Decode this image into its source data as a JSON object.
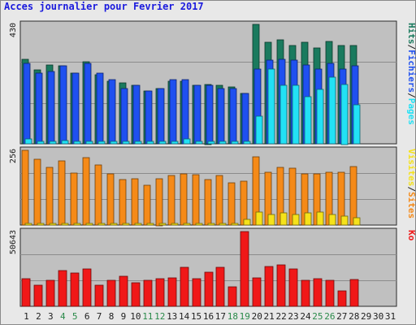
{
  "title": "Acces journalier pour Fevrier 2017",
  "chart_data": [
    {
      "type": "bar",
      "panel": "top",
      "ymax_label": "430",
      "ylim": [
        0,
        430
      ],
      "x": [
        "1",
        "2",
        "3",
        "4",
        "5",
        "6",
        "7",
        "8",
        "9",
        "10",
        "11",
        "12",
        "13",
        "14",
        "15",
        "16",
        "17",
        "18",
        "19",
        "20",
        "21",
        "22",
        "23",
        "24",
        "25",
        "26",
        "27",
        "28",
        "29",
        "30",
        "31"
      ],
      "series": [
        {
          "name": "Hits",
          "color": "#1a7a5e",
          "values": [
            305,
            265,
            285,
            280,
            255,
            295,
            250,
            225,
            220,
            210,
            190,
            200,
            225,
            225,
            210,
            215,
            210,
            205,
            180,
            430,
            365,
            375,
            355,
            365,
            345,
            370,
            355,
            355,
            0,
            0,
            0
          ]
        },
        {
          "name": "Fichiers",
          "color": "#1f50f0",
          "values": [
            290,
            255,
            260,
            280,
            255,
            290,
            255,
            230,
            200,
            210,
            190,
            200,
            230,
            230,
            210,
            210,
            200,
            200,
            180,
            270,
            300,
            305,
            300,
            285,
            270,
            290,
            270,
            280,
            0,
            0,
            0
          ]
        },
        {
          "name": "Pages",
          "color": "#22e1f5",
          "values": [
            18,
            10,
            10,
            12,
            10,
            10,
            10,
            8,
            8,
            8,
            8,
            8,
            10,
            18,
            10,
            8,
            10,
            8,
            8,
            100,
            270,
            210,
            210,
            170,
            195,
            240,
            215,
            140,
            0,
            0,
            0
          ]
        }
      ],
      "legend_labels": [
        "Pages",
        "/",
        "Fichiers",
        "/",
        "Hits"
      ],
      "legend_colors": [
        "#22e1f5",
        "#202020",
        "#1f50f0",
        "#202020",
        "#1a7a5e"
      ]
    },
    {
      "type": "bar",
      "panel": "middle",
      "ymax_label": "256",
      "ylim": [
        0,
        256
      ],
      "x": [
        "1",
        "2",
        "3",
        "4",
        "5",
        "6",
        "7",
        "8",
        "9",
        "10",
        "11",
        "12",
        "13",
        "14",
        "15",
        "16",
        "17",
        "18",
        "19",
        "20",
        "21",
        "22",
        "23",
        "24",
        "25",
        "26",
        "27",
        "28",
        "29",
        "30",
        "31"
      ],
      "series": [
        {
          "name": "Sites",
          "color": "#f58a18",
          "values": [
            256,
            225,
            198,
            220,
            178,
            230,
            205,
            175,
            155,
            158,
            135,
            160,
            170,
            175,
            172,
            155,
            170,
            145,
            150,
            235,
            180,
            198,
            195,
            175,
            175,
            182,
            180,
            200,
            0,
            0,
            0
          ]
        },
        {
          "name": "Visites",
          "color": "#f5e21a",
          "values": [
            5,
            3,
            3,
            4,
            3,
            3,
            3,
            3,
            3,
            3,
            3,
            3,
            3,
            3,
            3,
            3,
            3,
            3,
            20,
            45,
            35,
            42,
            35,
            42,
            45,
            35,
            30,
            25,
            0,
            0,
            0
          ]
        }
      ],
      "legend_labels": [
        "Sites",
        "/",
        "Visites"
      ],
      "legend_colors": [
        "#f58a18",
        "#202020",
        "#f5e21a"
      ]
    },
    {
      "type": "bar",
      "panel": "bottom",
      "ymax_label": "50643",
      "ylim": [
        0,
        50643
      ],
      "x": [
        "1",
        "2",
        "3",
        "4",
        "5",
        "6",
        "7",
        "8",
        "9",
        "10",
        "11",
        "12",
        "13",
        "14",
        "15",
        "16",
        "17",
        "18",
        "19",
        "20",
        "21",
        "22",
        "23",
        "24",
        "25",
        "26",
        "27",
        "28",
        "29",
        "30",
        "31"
      ],
      "series": [
        {
          "name": "Ko",
          "color": "#f01818",
          "values": [
            18500,
            14500,
            17500,
            24000,
            22500,
            25500,
            14500,
            17500,
            20500,
            16000,
            17500,
            18500,
            19500,
            26500,
            18500,
            23000,
            26500,
            13000,
            50643,
            19500,
            27000,
            28000,
            25500,
            17500,
            18500,
            17500,
            10500,
            18000,
            0,
            0,
            0
          ]
        }
      ],
      "legend_labels": [
        "Ko"
      ],
      "legend_colors": [
        "#f01818"
      ]
    }
  ],
  "weekend_color": "#2a8a4a",
  "weekday_color": "#202020",
  "weekend_days": [
    "4",
    "5",
    "11",
    "12",
    "18",
    "19",
    "25",
    "26"
  ]
}
